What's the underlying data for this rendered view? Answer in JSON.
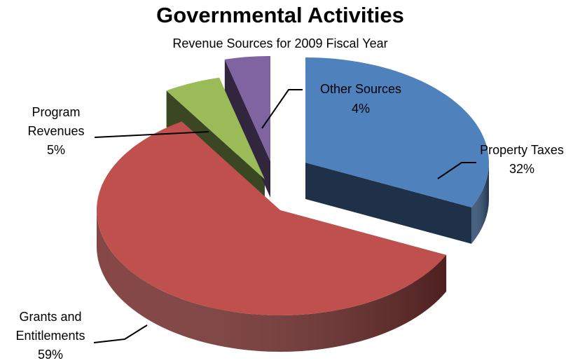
{
  "chart_data": {
    "type": "pie",
    "title": "Governmental Activities",
    "subtitle": "Revenue Sources for 2009 Fiscal Year",
    "style": "3d-exploded",
    "slices": [
      {
        "name": "Property Taxes",
        "value": 32,
        "percent_label": "32%",
        "color": "#4f81bd"
      },
      {
        "name": "Grants and Entitlements",
        "value": 59,
        "percent_label": "59%",
        "color": "#c0504d"
      },
      {
        "name": "Program Revenues",
        "value": 5,
        "percent_label": "5%",
        "color": "#9bbb59"
      },
      {
        "name": "Other Sources",
        "value": 4,
        "percent_label": "4%",
        "color": "#8064a2"
      }
    ],
    "legend": "none"
  }
}
